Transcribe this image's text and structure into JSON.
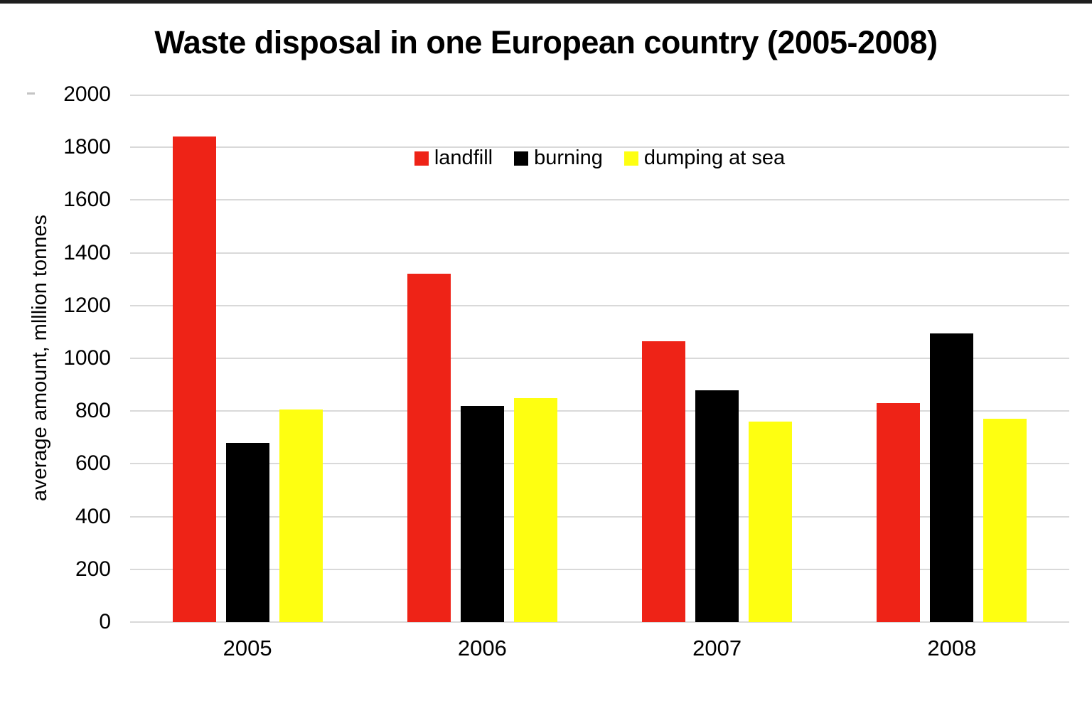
{
  "chart_data": {
    "type": "bar",
    "title": "Waste disposal in one European country (2005-2008)",
    "xlabel": "",
    "ylabel": "average amount, mlllion tonnes",
    "ylim": [
      0,
      2000
    ],
    "ytick_step": 200,
    "grid": "horizontal",
    "legend_position": "top-center-inside",
    "categories": [
      "2005",
      "2006",
      "2007",
      "2008"
    ],
    "series": [
      {
        "name": "landfill",
        "color": "#ee2317",
        "values": [
          1840,
          1320,
          1065,
          830
        ]
      },
      {
        "name": "burning",
        "color": "#000000",
        "values": [
          680,
          820,
          880,
          1095
        ]
      },
      {
        "name": "dumping at sea",
        "color": "#feff11",
        "values": [
          805,
          850,
          760,
          770
        ]
      }
    ]
  },
  "colors": {
    "background": "#ffffff",
    "gridline": "#d9d9d9",
    "top_strip": "#1e1e1e",
    "text": "#000000"
  }
}
